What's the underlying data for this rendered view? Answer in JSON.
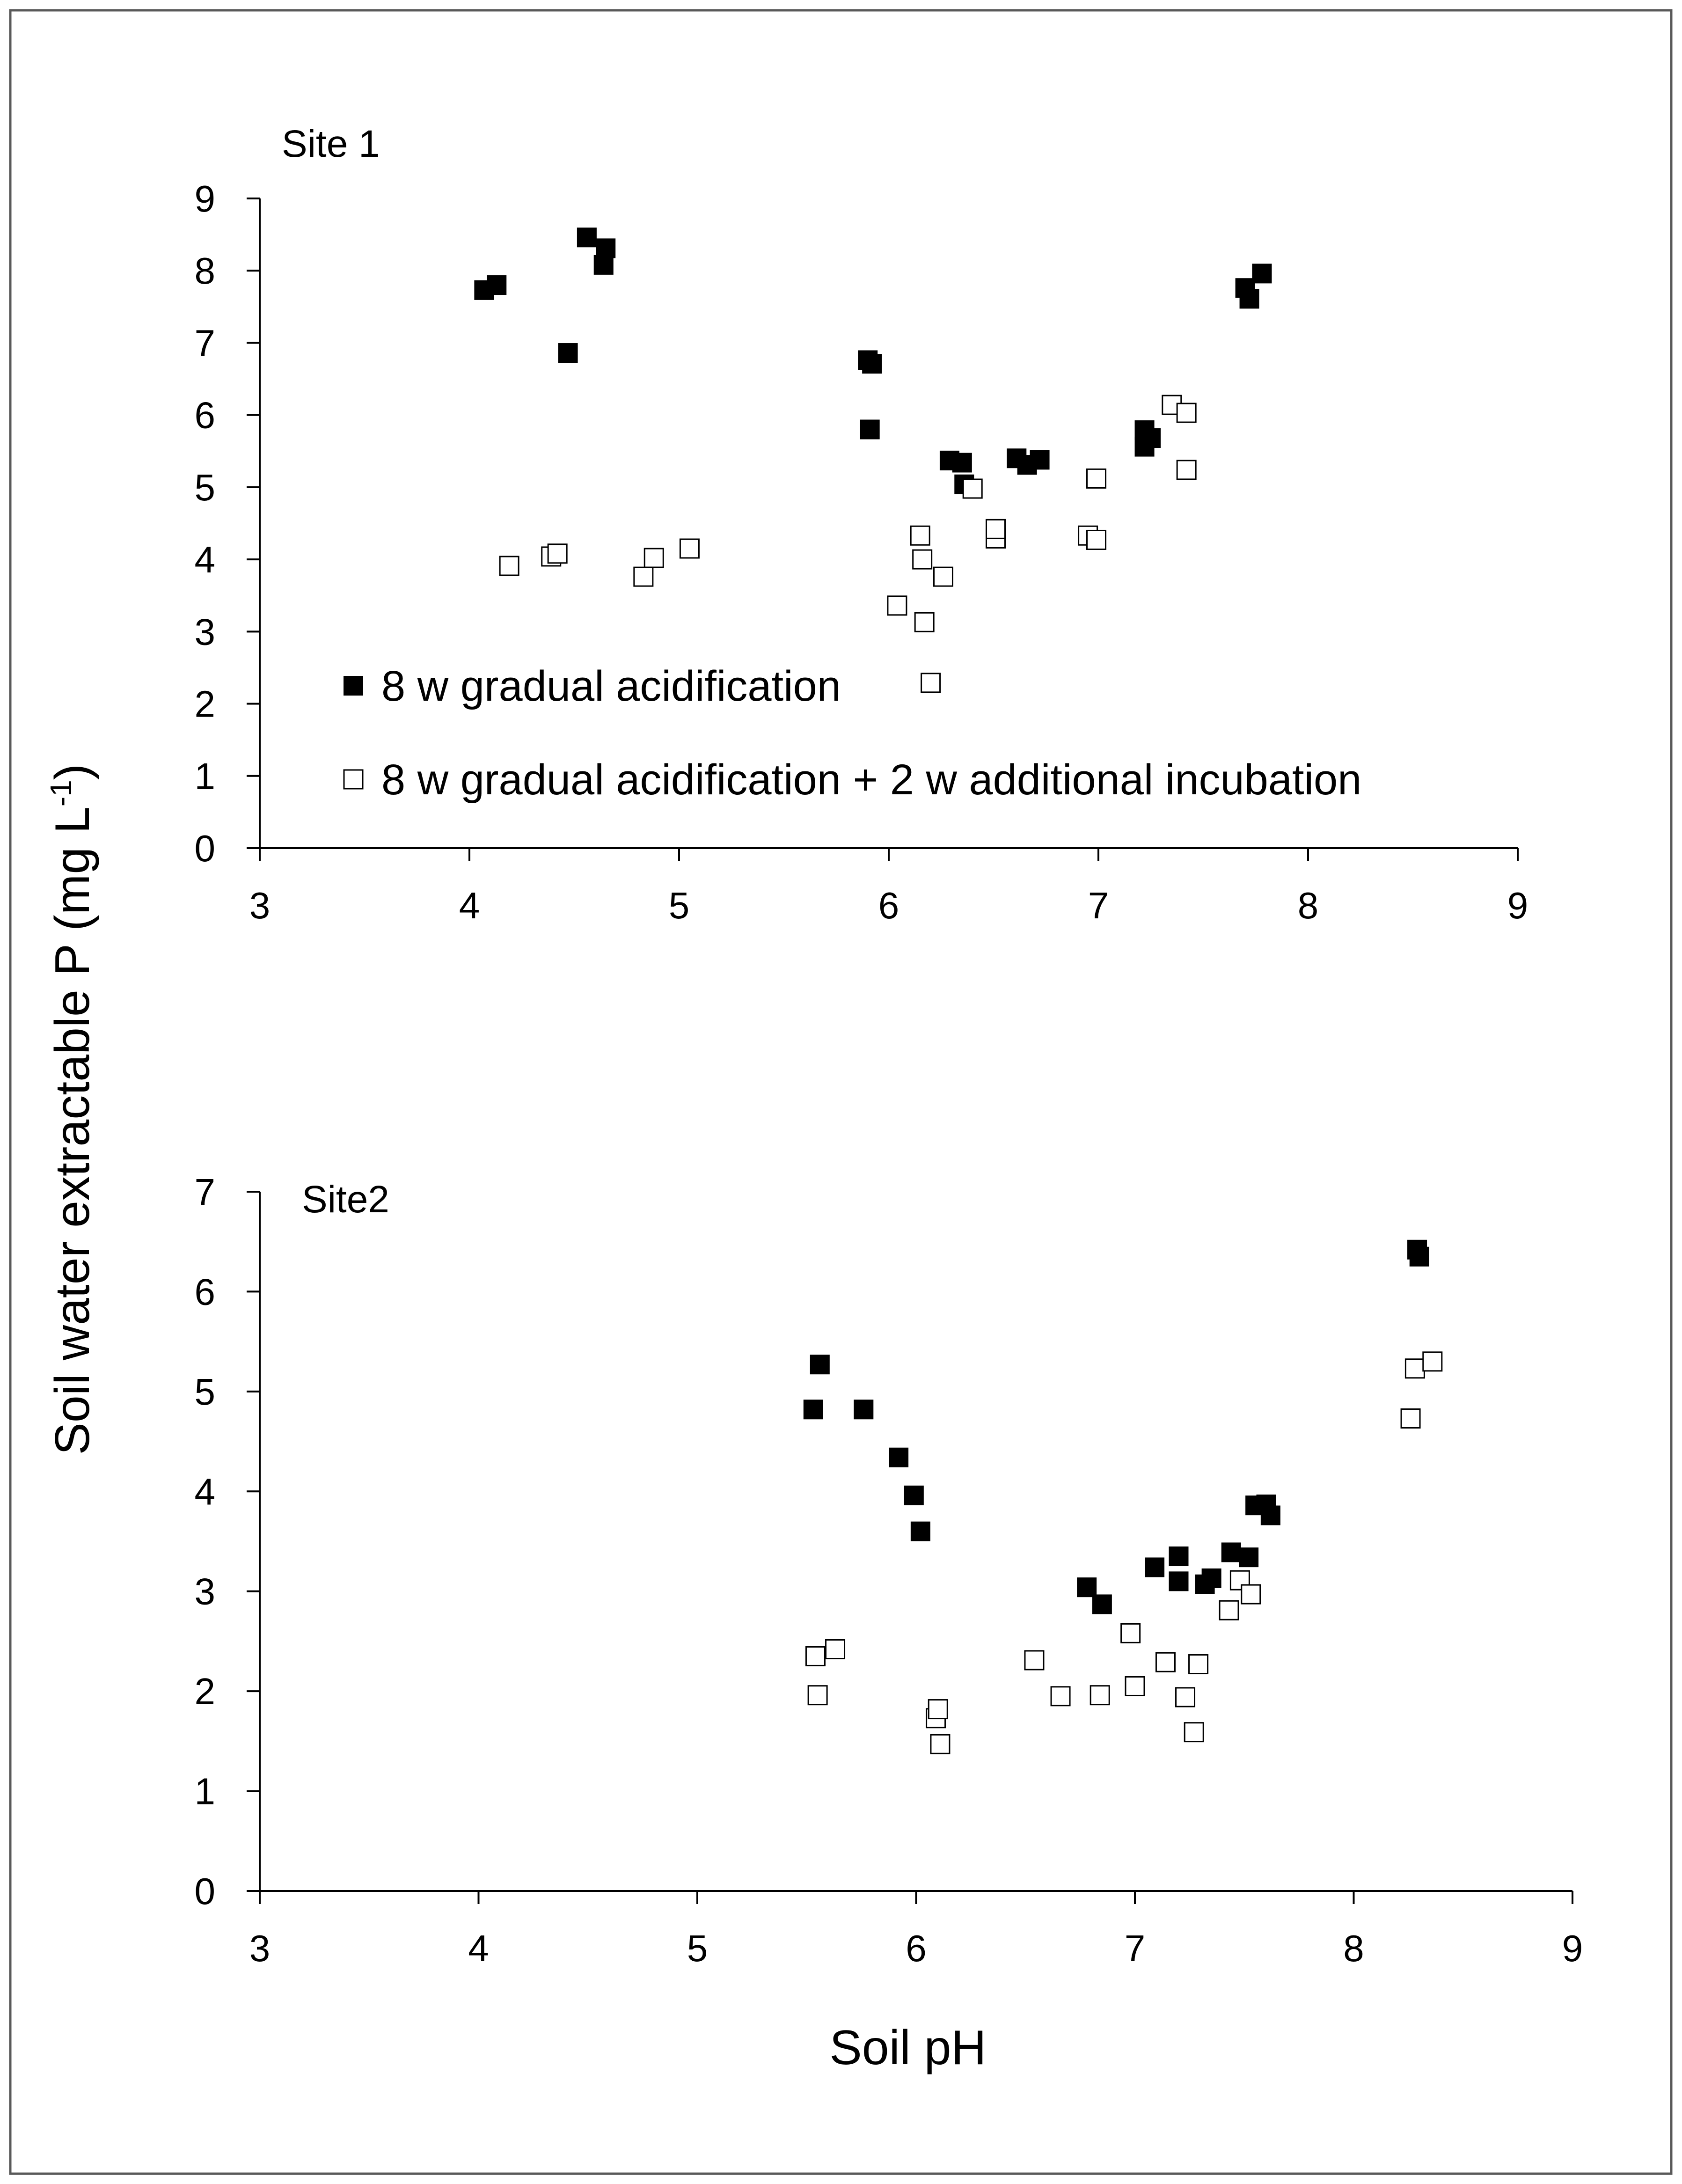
{
  "chart_data": [
    {
      "type": "scatter",
      "title": "Site 1",
      "xlabel": "Soil pH",
      "ylabel": "Soil water extractable P (mg L-1)",
      "xlim": [
        3,
        9
      ],
      "ylim": [
        0,
        9
      ],
      "xticks": [
        "3",
        "4",
        "5",
        "6",
        "7",
        "8",
        "9"
      ],
      "yticks": [
        "0",
        "1",
        "2",
        "3",
        "4",
        "5",
        "6",
        "7",
        "8",
        "9"
      ],
      "legend": [
        {
          "key": "filled",
          "label": "8 w gradual acidification"
        },
        {
          "key": "open",
          "label": "8 w gradual acidification + 2 w additional incubation"
        }
      ],
      "series": [
        {
          "name": "8 w gradual acidification",
          "marker": "filled-square",
          "x": [
            4.07,
            4.13,
            4.47,
            4.56,
            4.64,
            4.65,
            5.9,
            5.92,
            5.91,
            6.29,
            6.35,
            6.36,
            6.61,
            6.66,
            6.72,
            7.22,
            7.25,
            7.22,
            7.7,
            7.72,
            7.78
          ],
          "y": [
            7.73,
            7.8,
            6.86,
            8.46,
            8.08,
            8.31,
            6.76,
            6.71,
            5.8,
            5.37,
            5.34,
            5.04,
            5.4,
            5.31,
            5.38,
            5.79,
            5.68,
            5.56,
            7.76,
            7.61,
            7.96
          ]
        },
        {
          "name": "8 w gradual acidification + 2 w additional incubation",
          "marker": "open-square",
          "x": [
            4.19,
            4.39,
            4.42,
            4.83,
            4.88,
            5.05,
            6.04,
            6.15,
            6.16,
            6.17,
            6.2,
            6.26,
            6.4,
            6.51,
            6.51,
            6.95,
            6.99,
            6.99,
            7.35,
            7.42,
            7.42
          ],
          "y": [
            3.91,
            4.04,
            4.08,
            3.76,
            4.02,
            4.15,
            3.36,
            4.33,
            4.0,
            3.13,
            2.29,
            3.76,
            4.98,
            4.29,
            4.42,
            4.33,
            4.27,
            5.12,
            6.14,
            6.03,
            5.24
          ]
        }
      ]
    },
    {
      "type": "scatter",
      "title": "Site2",
      "xlabel": "Soil pH",
      "ylabel": "Soil water extractable P (mg L-1)",
      "xlim": [
        3,
        9
      ],
      "ylim": [
        0,
        7
      ],
      "xticks": [
        "3",
        "4",
        "5",
        "6",
        "7",
        "8",
        "9"
      ],
      "yticks": [
        "0",
        "1",
        "2",
        "3",
        "4",
        "5",
        "6",
        "7"
      ],
      "series": [
        {
          "name": "8 w gradual acidification",
          "marker": "filled-square",
          "x": [
            5.53,
            5.56,
            5.76,
            5.92,
            5.99,
            6.02,
            6.78,
            6.85,
            7.09,
            7.2,
            7.2,
            7.32,
            7.35,
            7.44,
            7.52,
            7.55,
            7.6,
            7.62,
            8.29,
            8.3
          ],
          "y": [
            4.82,
            5.27,
            4.82,
            4.34,
            3.96,
            3.6,
            3.04,
            2.87,
            3.24,
            3.35,
            3.1,
            3.07,
            3.13,
            3.39,
            3.34,
            3.86,
            3.87,
            3.76,
            6.42,
            6.35
          ]
        },
        {
          "name": "8 w gradual acidification + 2 w additional incubation",
          "marker": "open-square",
          "x": [
            5.54,
            5.55,
            5.63,
            6.09,
            6.1,
            6.11,
            6.54,
            6.66,
            6.84,
            6.98,
            7.0,
            7.14,
            7.23,
            7.27,
            7.29,
            7.43,
            7.48,
            7.53,
            8.26,
            8.28,
            8.36
          ],
          "y": [
            2.35,
            1.96,
            2.42,
            1.73,
            1.82,
            1.47,
            2.31,
            1.95,
            1.96,
            2.58,
            2.05,
            2.29,
            1.94,
            1.59,
            2.27,
            2.81,
            3.11,
            2.97,
            4.73,
            5.23,
            5.3
          ]
        }
      ]
    }
  ]
}
